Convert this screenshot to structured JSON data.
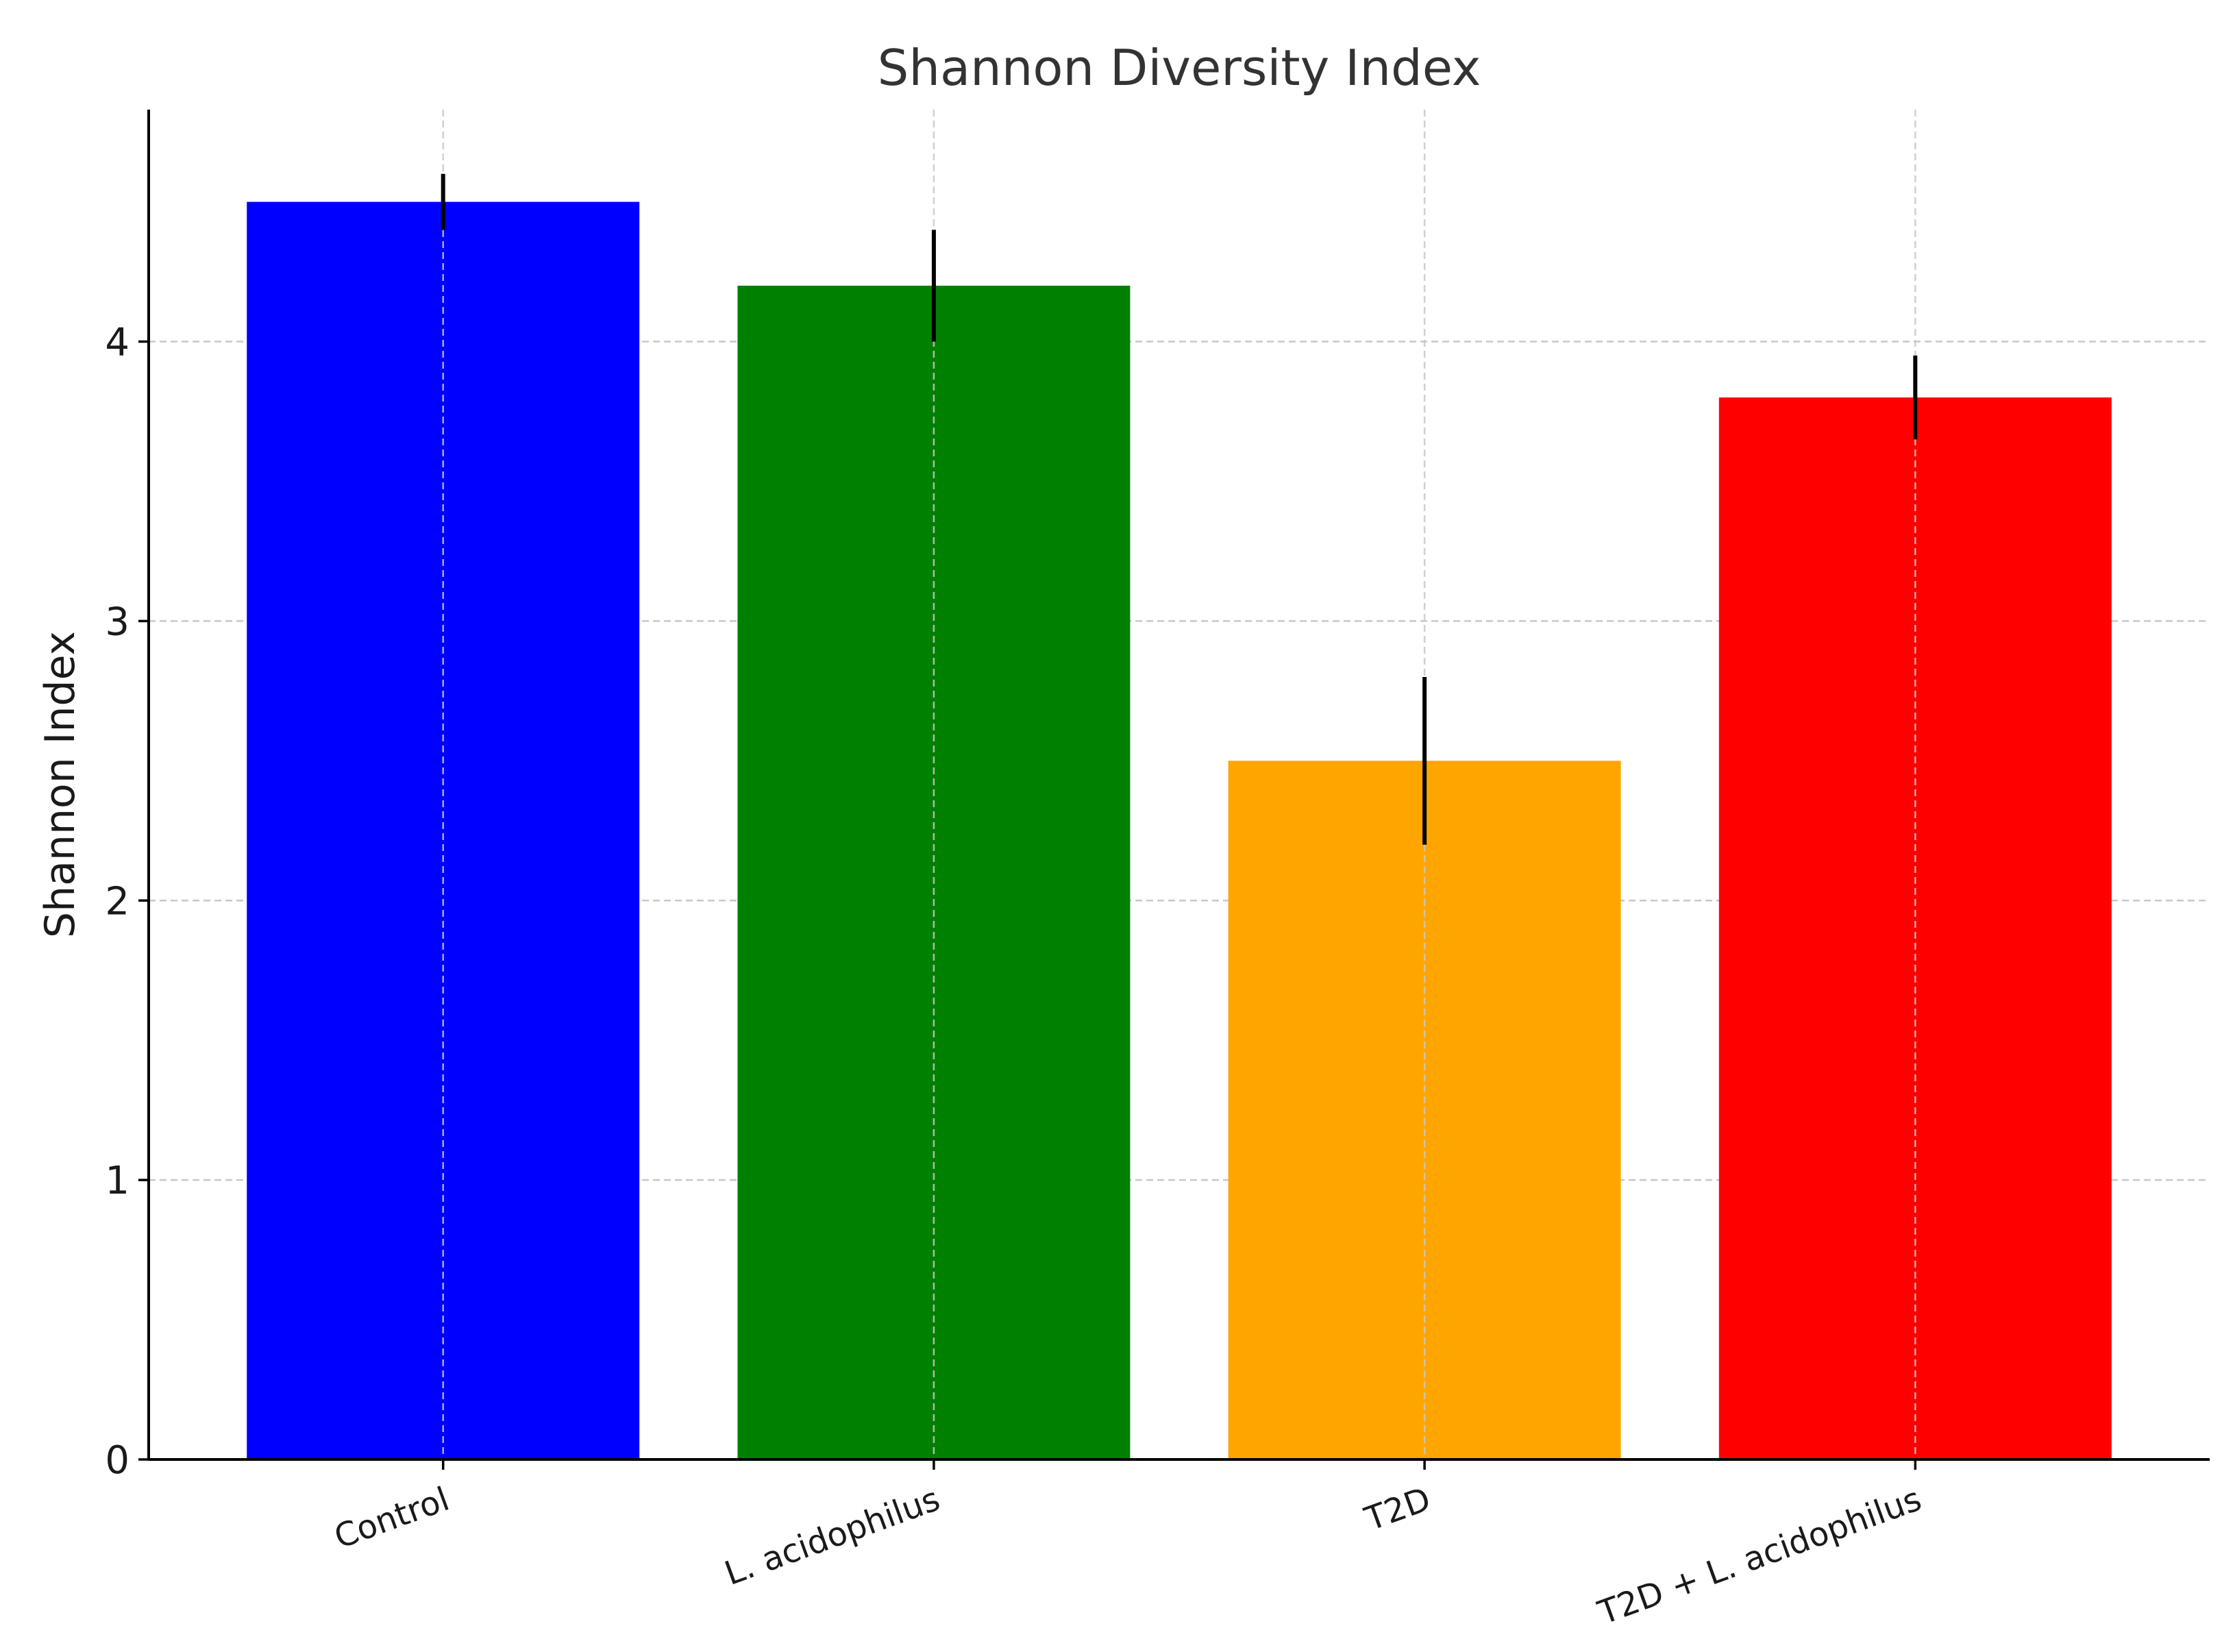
{
  "chart_data": {
    "type": "bar",
    "title": "Shannon Diversity Index",
    "xlabel": "",
    "ylabel": "Shannon Index",
    "categories": [
      "Control",
      "L. acidophilus",
      "T2D",
      "T2D + L. acidophilus"
    ],
    "values": [
      4.5,
      4.2,
      2.5,
      3.8
    ],
    "errors": [
      0.1,
      0.2,
      0.3,
      0.15
    ],
    "colors": [
      "#0000ff",
      "#008000",
      "#ffa500",
      "#ff0000"
    ],
    "ylim": [
      0,
      4.83
    ],
    "yticks": [
      0,
      1,
      2,
      3,
      4
    ],
    "ytick_labels": [
      "0",
      "1",
      "2",
      "3",
      "4"
    ],
    "grid": true,
    "xtick_rotation": 20
  }
}
